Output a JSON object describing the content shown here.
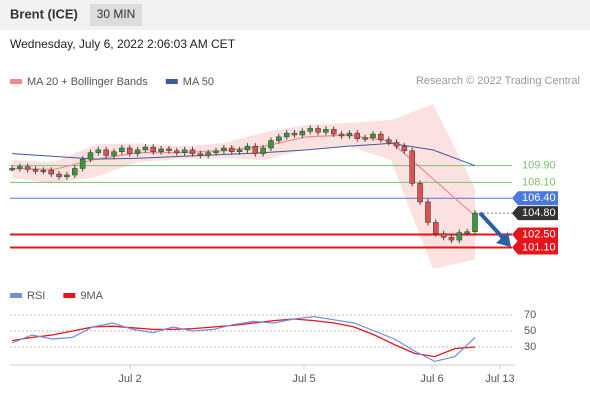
{
  "header": {
    "title": "Brent (ICE)",
    "interval": "30 MIN",
    "timestamp": "Wednesday, July 6, 2022 2:06:03 AM CET"
  },
  "chart_data": {
    "type": "candlestick",
    "legend": [
      {
        "name": "MA 20 + Bollinger Bands",
        "color": "#f28b8b"
      },
      {
        "name": "MA 50",
        "color": "#3c5a99"
      }
    ],
    "source": "Research © 2022 Trading Central",
    "ylim": [
      97.5,
      117.5
    ],
    "close": [
      109.6,
      109.8,
      109.5,
      109.3,
      109.4,
      109.0,
      108.7,
      108.9,
      109.6,
      110.6,
      111.3,
      111.6,
      111.0,
      111.4,
      111.8,
      111.2,
      111.6,
      111.9,
      111.4,
      111.7,
      111.5,
      111.3,
      111.6,
      111.2,
      111.0,
      111.3,
      111.5,
      111.8,
      111.4,
      111.6,
      112.0,
      111.2,
      111.8,
      112.6,
      113.0,
      113.4,
      113.2,
      113.6,
      113.9,
      113.5,
      113.8,
      113.3,
      113.1,
      113.4,
      112.8,
      112.9,
      113.3,
      112.7,
      112.4,
      112.0,
      111.5,
      108.0,
      106.0,
      103.8,
      102.6,
      102.2,
      101.9,
      102.7,
      102.8,
      104.8
    ],
    "up_color": "#3a9a3a",
    "down_color": "#d9534f",
    "ma50": [
      111.2,
      110.9,
      110.6,
      110.7,
      110.9,
      111.1,
      111.3,
      111.6,
      112.0,
      112.3,
      111.6,
      109.9
    ],
    "ma20": [
      109.6,
      109.5,
      110.6,
      111.3,
      111.3,
      111.5,
      112.0,
      113.0,
      113.2,
      112.5,
      108.5,
      104.5
    ],
    "bb_upper": [
      110.5,
      110.3,
      112.2,
      112.3,
      112.0,
      112.3,
      113.5,
      114.3,
      114.5,
      114.8,
      116.5,
      107.5
    ],
    "bb_lower": [
      108.6,
      108.0,
      108.7,
      110.3,
      110.6,
      110.7,
      110.5,
      111.7,
      112.0,
      110.5,
      98.8,
      99.8
    ],
    "band_color": "#fbd9d9",
    "levels": [
      {
        "value": 109.9,
        "label": "109.90",
        "color": "#7cc26b",
        "style": "text"
      },
      {
        "value": 108.1,
        "label": "108.10",
        "color": "#7cc26b",
        "style": "text"
      },
      {
        "value": 106.4,
        "label": "106.40",
        "color": "#4a78e0",
        "style": "box"
      },
      {
        "value": 104.8,
        "label": "104.80",
        "color": "#333333",
        "style": "box"
      },
      {
        "value": 102.5,
        "label": "102.50",
        "color": "#e8141b",
        "style": "box"
      },
      {
        "value": 101.1,
        "label": "101.10",
        "color": "#e8141b",
        "style": "box"
      }
    ],
    "rsi_legend": [
      {
        "name": "RSI",
        "color": "#6f8fe0"
      },
      {
        "name": "9MA",
        "color": "#e8141b"
      }
    ],
    "rsi_ylim": [
      7.5,
      82.5
    ],
    "rsi_yticks": [
      70,
      50,
      30
    ],
    "rsi": [
      35,
      45,
      40,
      42,
      55,
      60,
      52,
      48,
      55,
      50,
      52,
      58,
      62,
      60,
      65,
      68,
      64,
      60,
      50,
      40,
      25,
      12,
      18,
      42
    ],
    "rsi_ma": [
      38,
      42,
      45,
      50,
      55,
      56,
      54,
      52,
      52,
      53,
      55,
      57,
      60,
      63,
      65,
      63,
      60,
      55,
      45,
      33,
      22,
      18,
      28,
      30
    ],
    "xlabels": [
      "Jul 2",
      "Jul 5",
      "Jul 6",
      "Jul 13"
    ]
  }
}
